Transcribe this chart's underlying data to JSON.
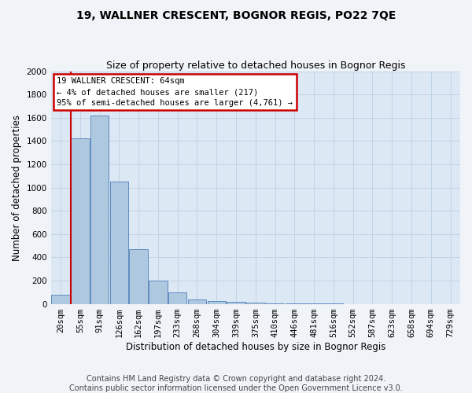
{
  "title": "19, WALLNER CRESCENT, BOGNOR REGIS, PO22 7QE",
  "subtitle": "Size of property relative to detached houses in Bognor Regis",
  "xlabel": "Distribution of detached houses by size in Bognor Regis",
  "ylabel": "Number of detached properties",
  "footer_line1": "Contains HM Land Registry data © Crown copyright and database right 2024.",
  "footer_line2": "Contains public sector information licensed under the Open Government Licence v3.0.",
  "bar_labels": [
    "20sqm",
    "55sqm",
    "91sqm",
    "126sqm",
    "162sqm",
    "197sqm",
    "233sqm",
    "268sqm",
    "304sqm",
    "339sqm",
    "375sqm",
    "410sqm",
    "446sqm",
    "481sqm",
    "516sqm",
    "552sqm",
    "587sqm",
    "623sqm",
    "658sqm",
    "694sqm",
    "729sqm"
  ],
  "bar_values": [
    75,
    1420,
    1620,
    1050,
    470,
    200,
    100,
    40,
    25,
    20,
    10,
    5,
    2,
    1,
    1,
    0,
    0,
    0,
    0,
    0,
    0
  ],
  "bar_color": "#aec8e0",
  "bar_edge_color": "#5080b8",
  "vline_color": "#cc0000",
  "vline_x": 0.525,
  "annotation_title": "19 WALLNER CRESCENT: 64sqm",
  "annotation_line2": "← 4% of detached houses are smaller (217)",
  "annotation_line3": "95% of semi-detached houses are larger (4,761) →",
  "annotation_box_bg": "#ffffff",
  "annotation_box_edge": "#cc0000",
  "ylim": [
    0,
    2000
  ],
  "yticks": [
    0,
    200,
    400,
    600,
    800,
    1000,
    1200,
    1400,
    1600,
    1800,
    2000
  ],
  "grid_color": "#c0d4e8",
  "plot_bg": "#dce8f4",
  "fig_bg": "#f0f4f8",
  "title_fontsize": 10,
  "subtitle_fontsize": 9,
  "ylabel_fontsize": 8.5,
  "xlabel_fontsize": 8.5,
  "tick_fontsize": 7.5,
  "ann_fontsize": 7.5,
  "footer_fontsize": 7
}
